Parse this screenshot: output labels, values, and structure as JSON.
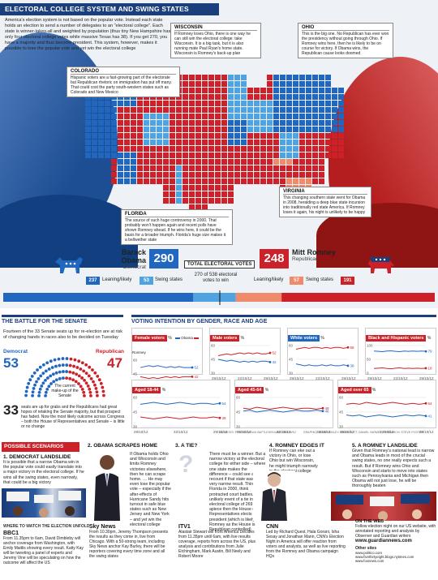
{
  "header": {
    "section_title": "ELECTORAL COLLEGE SYSTEM AND SWING STATES",
    "intro": "America's election system is not based on the popular vote. Instead each state holds an election to send a number of delegates to an \"electoral college\". Each state is winner-takes-all and weighted by population (thus tiny New Hampshire has only four electoral college votes while massive Texas has 38). If you get 270, you have a majority and thus become president. This system, however, makes it possible to lose the popular vote and yet win the electoral college"
  },
  "callouts": [
    {
      "title": "WISCONSIN",
      "body": "If Romney loses Ohio, there is one way he can still win the electoral college: take Wisconsin. It is a big task, but it is also running mate Paul Ryan's home state. Wisconsin is Romney's back-up plan"
    },
    {
      "title": "OHIO",
      "body": "This is the big one. No Republican has ever won the presidency without going through Ohio. If Romney wins here, then he is likely to be on course for victory. If Obama wins, the Republican cause looks doomed"
    },
    {
      "title": "COLORADO",
      "body": "Hispanic voters are a fast-growing part of the electorate but Republican rhetoric on immigration has put off many. That could cost the party south-western states such as Colorado and New Mexico"
    },
    {
      "title": "VIRGINIA",
      "body": "This changing southern state went for Obama in 2008, heralding a deep blue state incursion into traditionally red state America. If Romney loses it again, his night is unlikely to be happy"
    },
    {
      "title": "FLORIDA",
      "body": "The source of such huge controversy in 2000. That probably won't happen again and recent polls have shown Romney ahead. If he wins here, it could be the basis for a broader triumph. Florida's huge size makes it a bellwether state"
    }
  ],
  "candidates": {
    "obama": {
      "name": "Barack Obama",
      "party": "Democrat",
      "total": "290",
      "leaning": "237",
      "leaning_label": "Leaning/likely",
      "swing": "53",
      "swing_label": "Swing states",
      "color": "#2167c0",
      "light": "#4fa3e0"
    },
    "romney": {
      "name": "Mitt Romney",
      "party": "Republican",
      "total": "248",
      "leaning": "191",
      "leaning_label": "Leaning/likely",
      "swing": "57",
      "swing_label": "Swing states",
      "color": "#cc2128",
      "light": "#ef8a6a"
    },
    "total_label": "TOTAL ELECTORAL VOTES",
    "threshold": "270 of 538 electoral votes to win"
  },
  "senate": {
    "title": "THE BATTLE FOR THE SENATE",
    "intro": "Fourteen of the 33 Senate seats up for re-election are at risk of changing hands in races also to be decided on Tuesday",
    "dem_label": "Democrat",
    "dem": "53",
    "rep_label": "Republican",
    "rep": "47",
    "makeup": "The current make-up of the Senate",
    "seats_big": "33",
    "seats_text": "seats are up for grabs and the Republicans had great hopes of retaking the Senate majority, but that prospect has faded. Now the most likely outcome across Congress – both the House of Representatives and Senate – is little or no change"
  },
  "polls": {
    "title": "VOTING INTENTION BY GENDER, RACE AND AGE",
    "legend_obama": "Obama",
    "legend_romney": "Romney",
    "x_ticks": [
      "29/10/12",
      "22/10/12",
      "29/10/12"
    ],
    "source": "SOURCES: POLITICO/GWU BATTLEGROUND; NBC/WSJ",
    "credits": "GRAPHIC: JENNY RIDLEY, NIGEL PUTT, DANIEL YARMEY; RESEARCH: STEVE FOSTER"
  },
  "chart_data": [
    {
      "type": "line",
      "title": "Female voters",
      "unit": "%",
      "x": [
        0,
        1,
        2,
        3,
        4,
        5,
        6,
        7,
        8,
        9,
        10,
        11,
        12
      ],
      "ylim": [
        30,
        60
      ],
      "series": [
        {
          "name": "Obama",
          "values": [
            52,
            53,
            54,
            53,
            54,
            53,
            52,
            53,
            52,
            53,
            52,
            52,
            52
          ]
        },
        {
          "name": "Romney",
          "values": [
            42,
            41,
            40,
            41,
            40,
            41,
            42,
            41,
            42,
            41,
            42,
            42,
            42
          ]
        }
      ]
    },
    {
      "type": "line",
      "title": "Male voters",
      "unit": "%",
      "x": [
        0,
        1,
        2,
        3,
        4,
        5,
        6,
        7,
        8,
        9,
        10,
        11,
        12
      ],
      "ylim": [
        30,
        60
      ],
      "series": [
        {
          "name": "Obama",
          "values": [
            45,
            44,
            43,
            44,
            43,
            42,
            43,
            42,
            43,
            42,
            43,
            43,
            42
          ]
        },
        {
          "name": "Romney",
          "values": [
            49,
            50,
            51,
            50,
            51,
            52,
            51,
            52,
            51,
            52,
            51,
            51,
            52
          ]
        }
      ]
    },
    {
      "type": "line",
      "title": "White voters",
      "unit": "%",
      "x": [
        0,
        1,
        2,
        3,
        4,
        5,
        6,
        7,
        8,
        9,
        10,
        11,
        12
      ],
      "ylim": [
        30,
        60
      ],
      "series": [
        {
          "name": "Obama",
          "values": [
            40,
            39,
            38,
            39,
            38,
            38,
            39,
            38,
            39,
            38,
            38,
            39,
            38
          ]
        },
        {
          "name": "Romney",
          "values": [
            56,
            57,
            58,
            57,
            58,
            58,
            57,
            58,
            57,
            58,
            58,
            57,
            58
          ]
        }
      ]
    },
    {
      "type": "line",
      "title": "Black and Hispanic voters",
      "unit": "%",
      "x": [
        0,
        1,
        2,
        3,
        4,
        5,
        6,
        7,
        8,
        9,
        10,
        11,
        12
      ],
      "ylim": [
        0,
        100
      ],
      "series": [
        {
          "name": "Obama",
          "values": [
            80,
            79,
            78,
            80,
            81,
            79,
            78,
            80,
            79,
            80,
            79,
            80,
            79
          ]
        },
        {
          "name": "Romney",
          "values": [
            17,
            18,
            19,
            17,
            16,
            18,
            19,
            17,
            18,
            17,
            18,
            17,
            18
          ]
        }
      ]
    },
    {
      "type": "line",
      "title": "Aged 18-44",
      "unit": "%",
      "x": [
        0,
        1,
        2,
        3,
        4,
        5,
        6,
        7,
        8,
        9,
        10,
        11,
        12
      ],
      "ylim": [
        30,
        60
      ],
      "series": [
        {
          "name": "Obama",
          "values": [
            53,
            54,
            55,
            54,
            53,
            54,
            55,
            54,
            53,
            54,
            54,
            53,
            54
          ]
        },
        {
          "name": "Romney",
          "values": [
            40,
            39,
            38,
            39,
            40,
            39,
            38,
            39,
            40,
            39,
            39,
            40,
            39
          ]
        }
      ]
    },
    {
      "type": "line",
      "title": "Aged 45-64",
      "unit": "%",
      "x": [
        0,
        1,
        2,
        3,
        4,
        5,
        6,
        7,
        8,
        9,
        10,
        11,
        12
      ],
      "ylim": [
        30,
        60
      ],
      "series": [
        {
          "name": "Obama",
          "values": [
            46,
            47,
            45,
            46,
            47,
            46,
            45,
            46,
            47,
            46,
            46,
            47,
            46
          ]
        },
        {
          "name": "Romney",
          "values": [
            49,
            48,
            50,
            49,
            48,
            49,
            50,
            49,
            48,
            49,
            49,
            48,
            49
          ]
        }
      ]
    },
    {
      "type": "line",
      "title": "Aged over 65",
      "unit": "%",
      "x": [
        0,
        1,
        2,
        3,
        4,
        5,
        6,
        7,
        8,
        9,
        10,
        11,
        12
      ],
      "ylim": [
        30,
        60
      ],
      "series": [
        {
          "name": "Obama",
          "values": [
            42,
            41,
            42,
            40,
            41,
            42,
            41,
            40,
            41,
            42,
            41,
            42,
            41
          ]
        },
        {
          "name": "Romney",
          "values": [
            53,
            54,
            53,
            55,
            54,
            53,
            54,
            55,
            54,
            53,
            54,
            53,
            54
          ]
        }
      ]
    }
  ],
  "scenarios": {
    "title": "POSSIBLE SCENARIOS",
    "items": [
      {
        "heading": "1. DEMOCRAT LANDSLIDE",
        "body": "It is possible that a narrow Obama win in the popular vote could easily translate into a major victory in the electoral college. If he wins all the swing states, even narrowly, that could be a big victory"
      },
      {
        "heading": "2. OBAMA SCRAPES HOME",
        "body": "If Obama holds Ohio and Wisconsin and limits Romney victories elsewhere, then he can scrape home. … He may even lose the popular vote – especially if the after-effects of Hurricane Sandy hits turnout in safe blue states such as New Jersey and New York – and yet win the electoral college"
      },
      {
        "heading": "3. A TIE?",
        "body": "There must be a winner. But a narrow victory at the electoral college for either side – where one state makes the difference – could see a recount if that state was a very narrow result. Think Florida in 2000, think protracted court battles. In the unlikely event of a tie in the electoral college of 269 apiece then the House of Representatives elects the president (which is likely to be Romney as the House is Republican controlled)"
      },
      {
        "heading": "4. ROMNEY EDGES IT",
        "body": "If Romney can eke out a victory in Ohio, or lose Ohio but win Wisconsin, he might triumph narrowly in the electoral college"
      },
      {
        "heading": "5. A ROMNEY LANDSLIDE",
        "body": "Given that Romney's national lead is narrow and Obama leads in most of the crucial swing states, no one really expects such a result. But if Romney wins Ohio and Wisconsin and starts to move into states such as Pennsylvania and Michigan then Obama will not just lose, he will be thoroughly beaten"
      }
    ]
  },
  "where_to_watch": {
    "title": "WHERE TO WATCH THE ELECTION UNFOLD",
    "items": [
      {
        "heading": "BBC1",
        "body": "From 11.35pm to 6am, David Dimbleby will anchor coverage from Washington, with Emily Maitlis showing every result. Katty Kay will be tweeting a panel of experts and Jeremy Vine will be speculating on how the outcome will affect the US"
      },
      {
        "heading": "Sky News",
        "body": "From 10.30pm, Jeremy Thompson presents the results as they come in, live from Chicago. With a 50-strong team, including Sky News anchor Kay Burley, there will be reporters covering every time zone and all the swing states"
      },
      {
        "heading": "ITV1",
        "body": "Alastair Stewart will front America Decides from 11.35pm until 6am, with live results coverage, reports from across the US, plus analysis and contributions from Julie Etchingham, Mark Austin, Bill Neely and Robert Moore"
      },
      {
        "heading": "CNN",
        "body": "Led by Richard Quest, Hala Gorani, Isha Sesay and Jonathan Mann, CNN's Election Night in America will offer reaction from voters and analysts, as well as live reporting from the Romney and Obama campaign HQs"
      },
      {
        "heading": "ON THE WEB",
        "body": "Follow election night on our US website, with annotated reporting and analysis by Observer and Guardian writers",
        "link": "www.guardiannews.com",
        "other_label": "Other sites",
        "others": [
          "www.politico.com",
          "www.fivethirtyeight.blogs.nytimes.com",
          "www.foxnews.com"
        ]
      }
    ]
  },
  "colors": {
    "navy": "#1a3f7c",
    "dem": "#2167c0",
    "rep": "#cc2128",
    "dem_light": "#4fa3e0",
    "rep_light": "#ef8a6a"
  }
}
